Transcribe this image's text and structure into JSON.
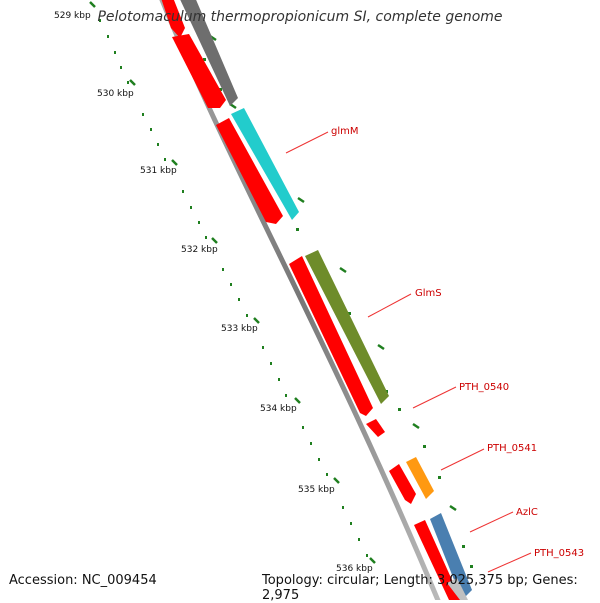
{
  "title": "Pelotomaculum thermopropionicum SI, complete genome",
  "footer": {
    "accession": "Accession: NC_009454",
    "summary": "Topology: circular; Length: 3,025,375 bp; Genes: 2,975"
  },
  "ticks": [
    "529 kbp",
    "530 kbp",
    "531 kbp",
    "532 kbp",
    "533 kbp",
    "534 kbp",
    "535 kbp",
    "536 kbp"
  ],
  "genes": [
    "glmM",
    "GlmS",
    "PTH_0540",
    "PTH_0541",
    "AzlC",
    "PTH_0543"
  ],
  "colors": {
    "cds": "#ff0000",
    "unnamed": "#6e6e6e",
    "glmM": "#22cccc",
    "GlmS": "#6e8c2a",
    "PTH_0540": "#ffffff",
    "PTH_0541": "#ff9911",
    "AzlC": "#4a7fb0",
    "PTH_0543": "#c0c0c0",
    "backbone": "#888888",
    "tick": "#1f7f1f",
    "label": "#cc0000"
  }
}
